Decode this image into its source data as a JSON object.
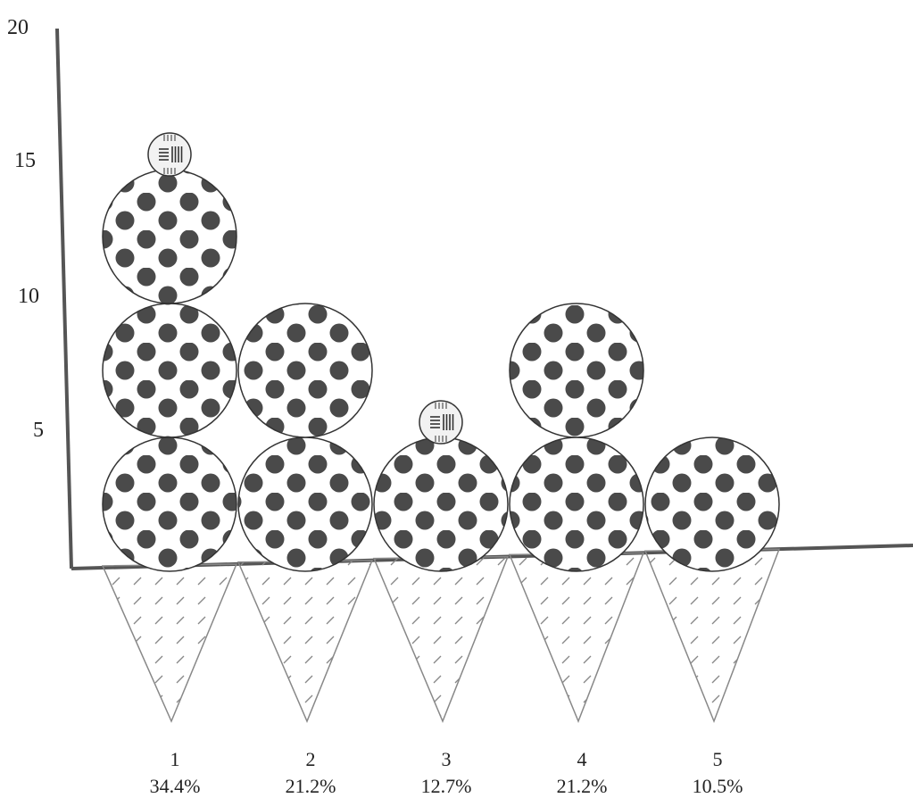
{
  "chart_data": {
    "type": "pictograph",
    "title": "",
    "xlabel": "",
    "ylabel": "",
    "ylim": [
      0,
      20
    ],
    "yticks": [
      "5",
      "10",
      "15",
      "20"
    ],
    "unit_per_scoop": 5,
    "categories": [
      "1",
      "2",
      "3",
      "4",
      "5"
    ],
    "percent_labels": [
      "34.4%",
      "21.2%",
      "12.7%",
      "21.2%",
      "10.5%"
    ],
    "values": [
      16,
      10,
      6,
      10,
      5
    ],
    "scoops": [
      3,
      2,
      1,
      2,
      1
    ],
    "has_topping": [
      true,
      false,
      true,
      false,
      false
    ],
    "grid": false,
    "legend": "none"
  },
  "colors": {
    "axis": "#555555",
    "dot": "#4a4a4a",
    "outline": "#333333",
    "cone_line": "#888888",
    "text": "#222222"
  },
  "icons": {
    "scoop": "polka-dot-scoop-icon",
    "cone": "waffle-cone-icon",
    "topping": "striped-candy-icon"
  }
}
